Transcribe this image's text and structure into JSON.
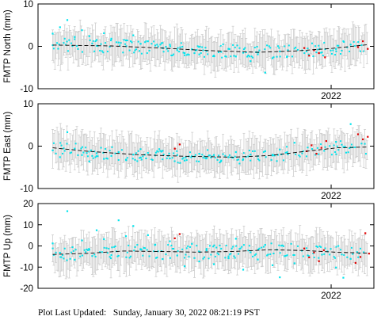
{
  "footer": {
    "label": "Plot Last Updated:",
    "value": "Sunday, January 30, 2022 08:21:19 PST"
  },
  "colors": {
    "cyan": "#00e5ee",
    "red": "#e00000",
    "error_bar": "#c8c8c8",
    "trend": "#000000"
  },
  "chart_data": [
    {
      "type": "scatter",
      "ylabel": "FMTP North (mm)",
      "ylim": [
        -10,
        10
      ],
      "yticks": [
        -10,
        0,
        10
      ],
      "xlim": [
        2019.6,
        2022.35
      ],
      "xtick_label": "2022",
      "xtick_value": 2022.0,
      "trend": [
        [
          2019.72,
          0.3
        ],
        [
          2020.2,
          0.1
        ],
        [
          2020.6,
          -0.4
        ],
        [
          2021.0,
          -1.0
        ],
        [
          2021.4,
          -1.4
        ],
        [
          2021.7,
          -1.1
        ],
        [
          2022.0,
          -0.5
        ],
        [
          2022.3,
          0.4
        ]
      ],
      "cyan": [
        [
          2019.72,
          3.0
        ],
        [
          2019.78,
          4.5
        ],
        [
          2019.84,
          6.2
        ],
        [
          2019.9,
          2.2
        ],
        [
          2019.96,
          3.8
        ],
        [
          2020.02,
          2.4
        ],
        [
          2020.08,
          1.5
        ],
        [
          2020.14,
          3.1
        ],
        [
          2020.2,
          1.8
        ],
        [
          2020.26,
          0.9
        ],
        [
          2020.32,
          1.4
        ],
        [
          2020.38,
          2.6
        ],
        [
          2020.44,
          0.6
        ],
        [
          2020.5,
          1.2
        ],
        [
          2020.56,
          0.2
        ],
        [
          2020.62,
          -0.4
        ],
        [
          2020.68,
          0.4
        ],
        [
          2020.74,
          -0.9
        ],
        [
          2020.8,
          -1.6
        ],
        [
          2020.86,
          -0.7
        ],
        [
          2020.92,
          -1.9
        ],
        [
          2020.98,
          -1.1
        ],
        [
          2021.04,
          -2.2
        ],
        [
          2021.1,
          -1.3
        ],
        [
          2021.16,
          -0.6
        ],
        [
          2021.22,
          -2.4
        ],
        [
          2021.28,
          -1.5
        ],
        [
          2021.34,
          -3.5
        ],
        [
          2021.4,
          -1.9
        ],
        [
          2021.46,
          -6.2
        ],
        [
          2021.52,
          -2.8
        ],
        [
          2021.58,
          -1.2
        ],
        [
          2021.64,
          -2.4
        ],
        [
          2022.04,
          -0.6
        ],
        [
          2022.1,
          1.2
        ],
        [
          2022.16,
          0.4
        ]
      ],
      "red": [
        [
          2021.78,
          -0.4
        ],
        [
          2021.82,
          -2.2
        ],
        [
          2021.86,
          -0.9
        ],
        [
          2021.9,
          -1.6
        ],
        [
          2021.95,
          -2.6
        ],
        [
          2022.22,
          -0.2
        ],
        [
          2022.26,
          1.2
        ],
        [
          2022.3,
          -0.6
        ]
      ]
    },
    {
      "type": "scatter",
      "ylabel": "FMTP East (mm)",
      "ylim": [
        -10,
        10
      ],
      "yticks": [
        -10,
        0,
        10
      ],
      "xlim": [
        2019.6,
        2022.35
      ],
      "xtick_label": "2022",
      "xtick_value": 2022.0,
      "trend": [
        [
          2019.72,
          -0.4
        ],
        [
          2020.0,
          -1.2
        ],
        [
          2020.4,
          -2.0
        ],
        [
          2020.8,
          -2.4
        ],
        [
          2021.2,
          -2.6
        ],
        [
          2021.5,
          -2.2
        ],
        [
          2021.8,
          -1.2
        ],
        [
          2022.05,
          -0.4
        ],
        [
          2022.3,
          -0.2
        ]
      ],
      "cyan": [
        [
          2019.72,
          -1.0
        ],
        [
          2019.78,
          -2.6
        ],
        [
          2019.84,
          3.3
        ],
        [
          2019.9,
          -0.6
        ],
        [
          2019.96,
          -2.1
        ],
        [
          2020.02,
          -3.6
        ],
        [
          2020.08,
          -1.7
        ],
        [
          2020.14,
          -3.0
        ],
        [
          2020.2,
          -2.3
        ],
        [
          2020.26,
          -1.4
        ],
        [
          2020.32,
          -3.2
        ],
        [
          2020.38,
          -2.0
        ],
        [
          2020.44,
          -2.7
        ],
        [
          2020.5,
          -1.6
        ],
        [
          2020.56,
          -2.2
        ],
        [
          2020.62,
          -1.1
        ],
        [
          2020.68,
          -2.9
        ],
        [
          2020.74,
          -2.1
        ],
        [
          2020.8,
          -3.4
        ],
        [
          2020.86,
          -2.4
        ],
        [
          2020.92,
          -1.8
        ],
        [
          2020.98,
          -2.9
        ],
        [
          2021.04,
          -2.1
        ],
        [
          2021.1,
          -3.4
        ],
        [
          2021.16,
          -2.6
        ],
        [
          2021.22,
          -1.4
        ],
        [
          2021.28,
          -3.1
        ],
        [
          2021.34,
          -2.0
        ],
        [
          2021.4,
          -2.4
        ],
        [
          2021.46,
          -1.2
        ],
        [
          2021.52,
          -2.2
        ],
        [
          2021.58,
          -0.8
        ],
        [
          2021.64,
          -1.4
        ],
        [
          2021.7,
          0.8
        ],
        [
          2022.04,
          1.0
        ],
        [
          2022.1,
          -0.2
        ],
        [
          2022.16,
          5.2
        ]
      ],
      "red": [
        [
          2020.72,
          -0.6
        ],
        [
          2020.76,
          0.4
        ],
        [
          2021.8,
          -1.2
        ],
        [
          2021.84,
          0.2
        ],
        [
          2021.88,
          -1.8
        ],
        [
          2021.92,
          -0.4
        ],
        [
          2021.96,
          1.2
        ],
        [
          2022.22,
          2.8
        ],
        [
          2022.26,
          1.6
        ],
        [
          2022.3,
          2.2
        ]
      ]
    },
    {
      "type": "scatter",
      "ylabel": "FMTP Up (mm)",
      "ylim": [
        -20,
        20
      ],
      "yticks": [
        -20,
        -10,
        0,
        10,
        20
      ],
      "xlim": [
        2019.6,
        2022.35
      ],
      "xtick_label": "2022",
      "xtick_value": 2022.0,
      "trend": [
        [
          2019.72,
          -4.0
        ],
        [
          2020.0,
          -3.5
        ],
        [
          2020.3,
          -2.4
        ],
        [
          2020.6,
          -2.6
        ],
        [
          2020.9,
          -2.9
        ],
        [
          2021.2,
          -2.6
        ],
        [
          2021.5,
          -1.8
        ],
        [
          2021.8,
          -2.2
        ],
        [
          2022.05,
          -3.0
        ],
        [
          2022.3,
          -3.4
        ]
      ],
      "cyan": [
        [
          2019.72,
          1.2
        ],
        [
          2019.78,
          -3.2
        ],
        [
          2019.84,
          16.4
        ],
        [
          2019.9,
          -6.5
        ],
        [
          2019.96,
          2.6
        ],
        [
          2020.02,
          -1.8
        ],
        [
          2020.08,
          7.4
        ],
        [
          2020.14,
          3.2
        ],
        [
          2020.2,
          -4.3
        ],
        [
          2020.26,
          12.1
        ],
        [
          2020.32,
          4.6
        ],
        [
          2020.38,
          9.4
        ],
        [
          2020.44,
          -1.5
        ],
        [
          2020.5,
          5.1
        ],
        [
          2020.56,
          0.6
        ],
        [
          2020.62,
          -6.2
        ],
        [
          2020.68,
          2.2
        ],
        [
          2020.74,
          -4.5
        ],
        [
          2020.8,
          -9.6
        ],
        [
          2020.86,
          1.0
        ],
        [
          2020.92,
          -7.3
        ],
        [
          2020.98,
          -2.1
        ],
        [
          2021.04,
          -8.6
        ],
        [
          2021.1,
          -1.3
        ],
        [
          2021.16,
          -5.8
        ],
        [
          2021.22,
          3.4
        ],
        [
          2021.28,
          -11.2
        ],
        [
          2021.34,
          -3.0
        ],
        [
          2021.4,
          -6.4
        ],
        [
          2021.46,
          0.5
        ],
        [
          2021.52,
          -9.1
        ],
        [
          2021.58,
          -14.8
        ],
        [
          2021.64,
          -4.4
        ],
        [
          2021.7,
          -8.2
        ],
        [
          2021.76,
          -2.2
        ],
        [
          2022.04,
          -10.2
        ],
        [
          2022.1,
          -15.0
        ],
        [
          2022.16,
          -6.1
        ]
      ],
      "red": [
        [
          2020.72,
          3.6
        ],
        [
          2020.76,
          5.6
        ],
        [
          2021.78,
          -1.2
        ],
        [
          2021.82,
          -5.4
        ],
        [
          2021.86,
          -3.1
        ],
        [
          2021.9,
          -7.2
        ],
        [
          2021.94,
          -2.0
        ],
        [
          2022.2,
          -8.0
        ],
        [
          2022.24,
          -5.2
        ],
        [
          2022.28,
          6.0
        ],
        [
          2022.31,
          -3.6
        ]
      ]
    }
  ]
}
